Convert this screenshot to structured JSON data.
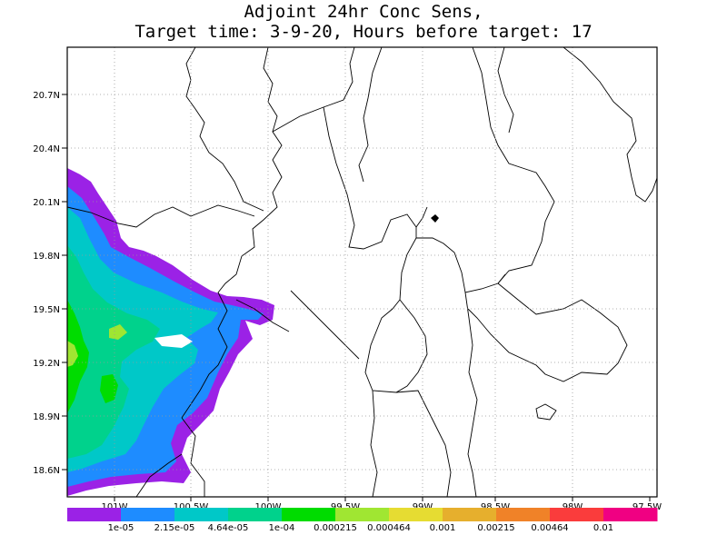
{
  "title": {
    "line1": "Adjoint 24hr Conc Sens,",
    "line2": "Target time: 3-9-20, Hours before target: 17"
  },
  "map": {
    "lat_labels": [
      "20.7N",
      "20.4N",
      "20.1N",
      "19.8N",
      "19.5N",
      "19.2N",
      "18.9N",
      "18.6N"
    ],
    "lon_labels": [
      "101W",
      "100.5W",
      "100W",
      "99.5W",
      "99W",
      "98.5W",
      "98W",
      "97.5W"
    ],
    "lat_range": [
      18.45,
      20.95
    ],
    "lon_range": [
      -101.25,
      -97.5
    ],
    "grid": "dotted",
    "marker": "target-point"
  },
  "colorbar": {
    "labels": [
      "1e-05",
      "2.15e-05",
      "4.64e-05",
      "1e-04",
      "0.000215",
      "0.000464",
      "0.001",
      "0.00215",
      "0.00464",
      "0.01"
    ],
    "colors": [
      "#9b22e6",
      "#1e8cff",
      "#00c8c8",
      "#00d28c",
      "#00dc00",
      "#a0e632",
      "#e6dc32",
      "#e6af2d",
      "#f08228",
      "#fa3c3c",
      "#f00082"
    ]
  }
}
